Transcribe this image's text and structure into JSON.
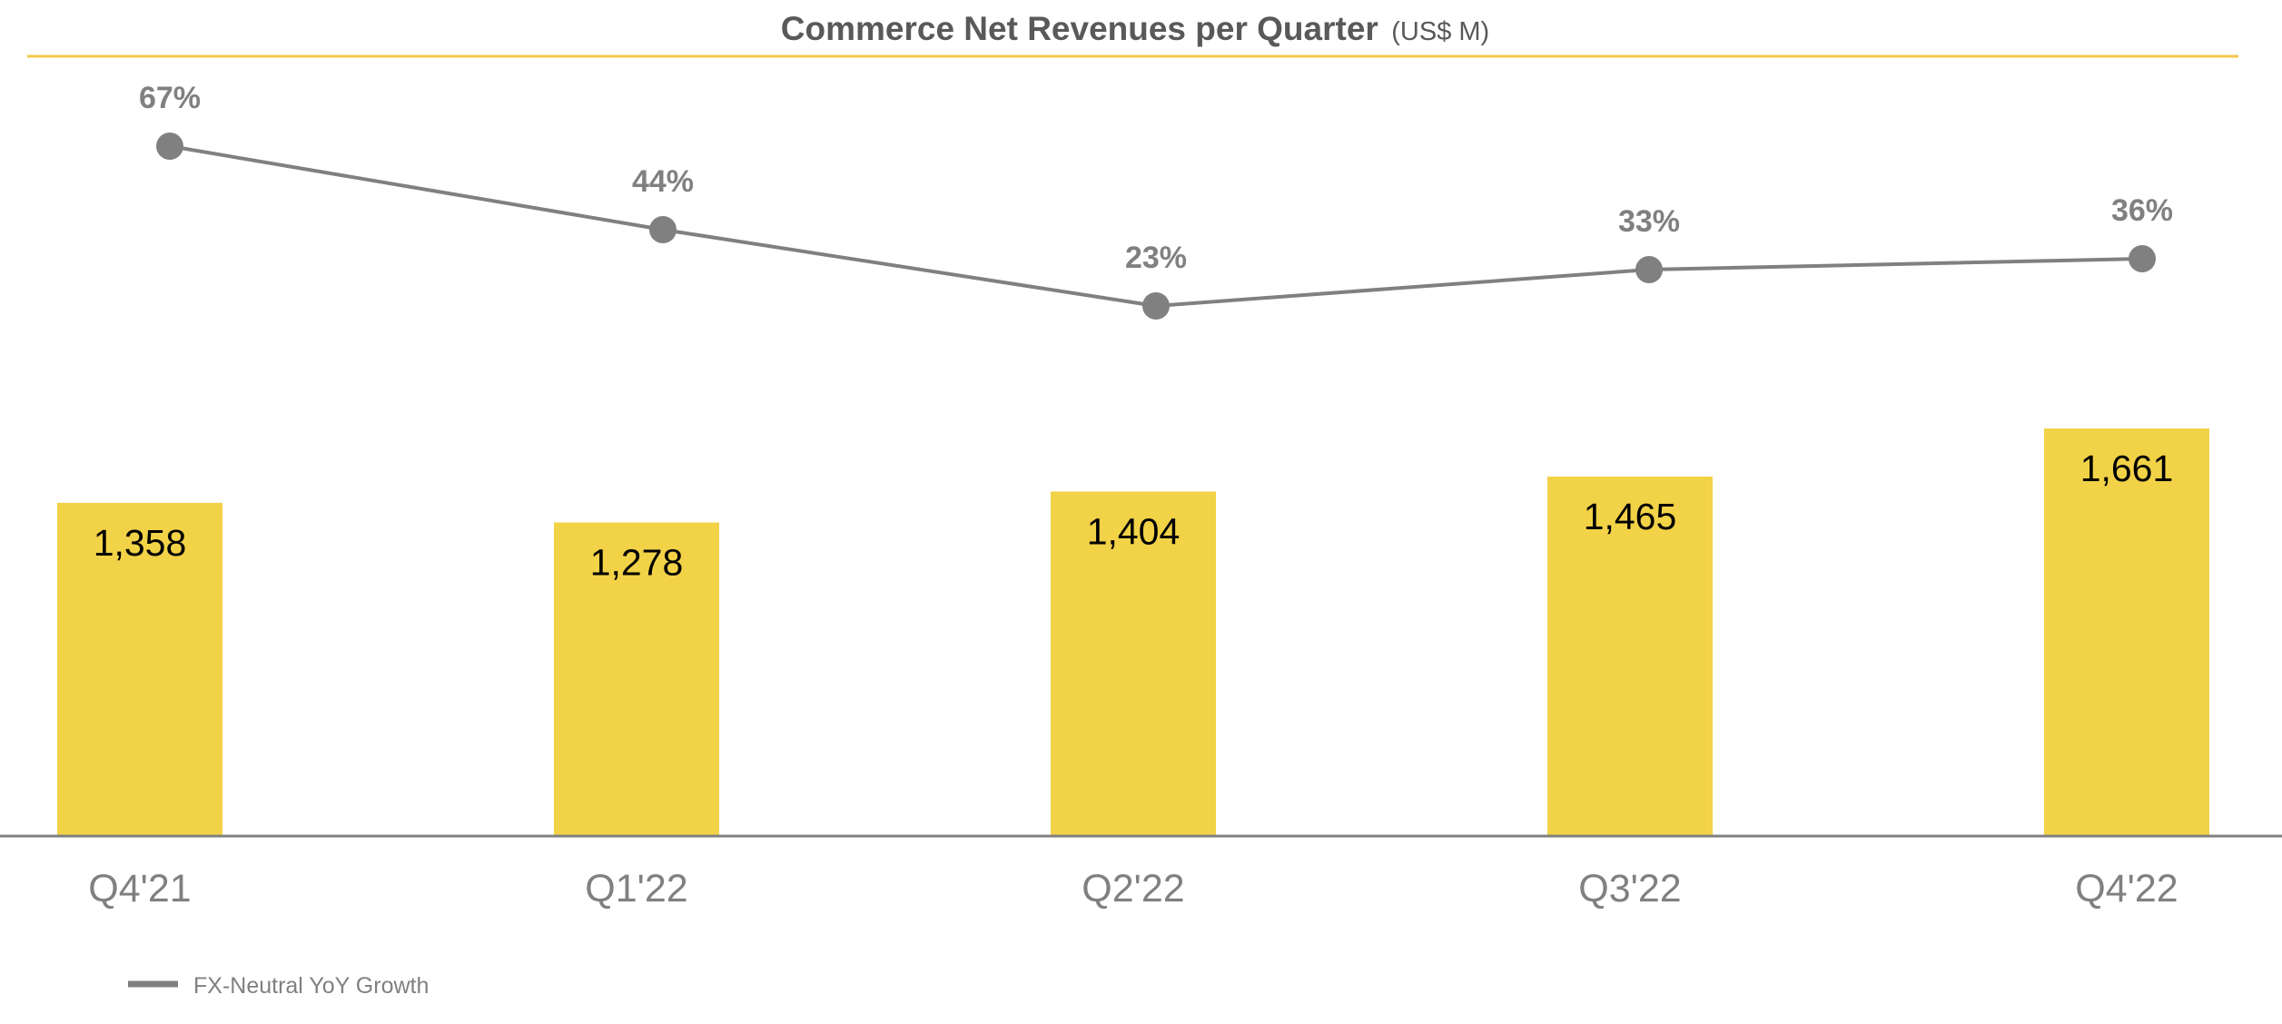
{
  "chart_data": {
    "type": "bar",
    "title": "Commerce Net Revenues per Quarter",
    "subtitle": "(US$ M)",
    "categories": [
      "Q4'21",
      "Q1'22",
      "Q2'22",
      "Q3'22",
      "Q4'22"
    ],
    "series": [
      {
        "type": "bar",
        "values": [
          1358,
          1278,
          1404,
          1465,
          1661
        ],
        "value_labels": [
          "1,358",
          "1,278",
          "1,404",
          "1,465",
          "1,661"
        ],
        "color": "#F2D247"
      },
      {
        "type": "line",
        "name": "FX-Neutral YoY Growth",
        "values": [
          67,
          44,
          23,
          33,
          36
        ],
        "value_labels": [
          "67%",
          "44%",
          "23%",
          "33%",
          "36%"
        ],
        "color": "#808080"
      }
    ],
    "xlabel": "",
    "ylabel": "",
    "ylim": [
      0,
      1661
    ],
    "grid": false,
    "legend": "bottom-left",
    "colors": {
      "title": "#595959",
      "title_rule": "#F2C94C",
      "axis": "#808080",
      "category_text": "#808080",
      "bar_label_text": "#000000"
    }
  }
}
